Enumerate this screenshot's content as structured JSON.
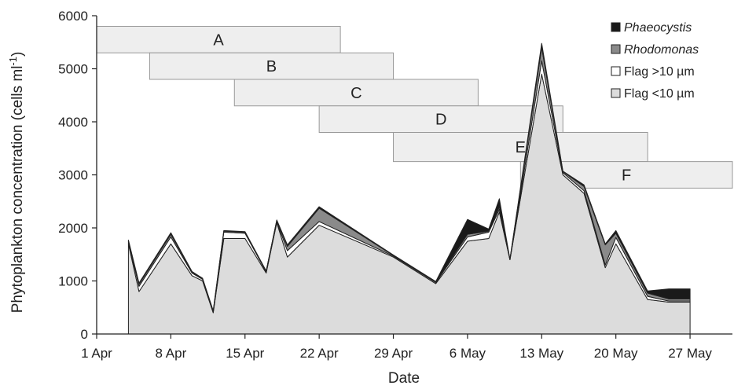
{
  "chart_data": {
    "type": "area",
    "title": "",
    "xlabel": "Date",
    "ylabel": "Phytoplankton concentration (cells ml",
    "ylabel_superscript": "-1",
    "ylabel_close": ")",
    "ylim": [
      0,
      6000
    ],
    "yticks": [
      0,
      1000,
      2000,
      3000,
      4000,
      5000,
      6000
    ],
    "xlim": [
      "1 Apr",
      "31 May"
    ],
    "xticks": [
      {
        "date": "1 Apr",
        "day": 1
      },
      {
        "date": "8 Apr",
        "day": 8
      },
      {
        "date": "15 Apr",
        "day": 15
      },
      {
        "date": "22 Apr",
        "day": 22
      },
      {
        "date": "29 Apr",
        "day": 29
      },
      {
        "date": "6 May",
        "day": 36
      },
      {
        "date": "13 May",
        "day": 43
      },
      {
        "date": "20 May",
        "day": 50
      },
      {
        "date": "27 May",
        "day": 57
      }
    ],
    "x": [
      4,
      5,
      8,
      10,
      11,
      12,
      13,
      15,
      17,
      18,
      19,
      22,
      29,
      33,
      36,
      38,
      39,
      40,
      43,
      45,
      47,
      49,
      50,
      53,
      55,
      57
    ],
    "series": [
      {
        "name": "Flag <10 µm",
        "color": "#dcdcdc",
        "values": [
          1700,
          800,
          1700,
          1100,
          1000,
          400,
          1800,
          1800,
          1150,
          2100,
          1450,
          2050,
          1450,
          950,
          1750,
          1800,
          2300,
          1400,
          4900,
          3000,
          2650,
          1250,
          1700,
          650,
          600,
          600
        ]
      },
      {
        "name": "Flag >10 µm",
        "color": "#ffffff",
        "values": [
          40,
          100,
          130,
          50,
          30,
          20,
          120,
          100,
          20,
          20,
          120,
          70,
          20,
          20,
          80,
          120,
          50,
          0,
          250,
          40,
          50,
          50,
          120,
          60,
          20,
          20
        ]
      },
      {
        "name": "Rhodomonas",
        "color": "#8a8a8a",
        "values": [
          20,
          40,
          50,
          20,
          10,
          10,
          20,
          20,
          10,
          20,
          80,
          250,
          10,
          10,
          50,
          20,
          50,
          10,
          250,
          20,
          80,
          380,
          80,
          60,
          40,
          40
        ]
      },
      {
        "name": "Phaeocystis",
        "color": "#1a1a1a",
        "values": [
          10,
          20,
          30,
          10,
          10,
          10,
          10,
          10,
          10,
          10,
          30,
          30,
          10,
          10,
          280,
          40,
          150,
          0,
          80,
          10,
          30,
          20,
          50,
          40,
          190,
          190
        ]
      }
    ],
    "legend": {
      "placement": "top-right",
      "entries": [
        {
          "label": "Phaeocystis",
          "italic": true,
          "color": "#1a1a1a"
        },
        {
          "label": "Rhodomonas",
          "italic": true,
          "color": "#8a8a8a"
        },
        {
          "label": "Flag >10 µm",
          "italic": false,
          "color": "#ffffff"
        },
        {
          "label": "Flag <10 µm",
          "italic": false,
          "color": "#dcdcdc"
        }
      ]
    },
    "periods": [
      {
        "label": "A",
        "start_day": 1,
        "end_day": 24,
        "y_top": 5800,
        "y_bottom": 5300
      },
      {
        "label": "B",
        "start_day": 6,
        "end_day": 29,
        "y_top": 5300,
        "y_bottom": 4800
      },
      {
        "label": "C",
        "start_day": 14,
        "end_day": 37,
        "y_top": 4800,
        "y_bottom": 4300
      },
      {
        "label": "D",
        "start_day": 22,
        "end_day": 45,
        "y_top": 4300,
        "y_bottom": 3800
      },
      {
        "label": "E",
        "start_day": 29,
        "end_day": 53,
        "y_top": 3800,
        "y_bottom": 3250
      },
      {
        "label": "F",
        "start_day": 41,
        "end_day": 65,
        "y_top": 3250,
        "y_bottom": 2750
      }
    ],
    "grid": false,
    "colors": {
      "period_fill": "#eeeeee",
      "period_stroke": "#999999",
      "axis": "#222222"
    }
  }
}
